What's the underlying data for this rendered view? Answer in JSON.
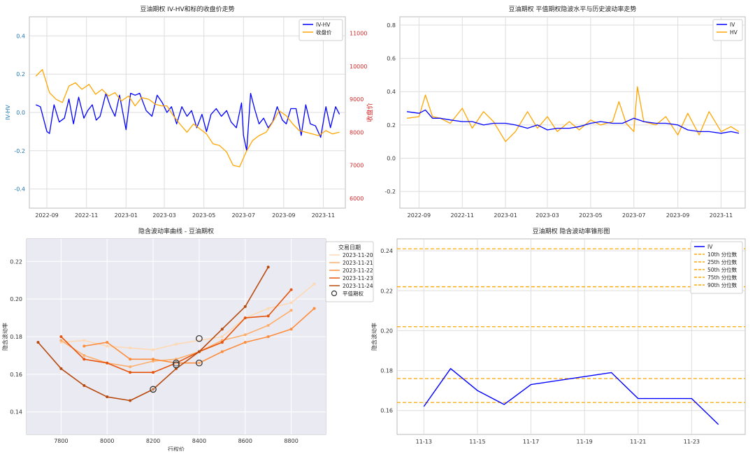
{
  "chart_data": [
    {
      "type": "line",
      "title": "豆油期权 IV-HV和标的收盘价走势",
      "xlabel": "",
      "ylabel": "IV-HV",
      "ylabel_right": "收盘价",
      "x_ticks": [
        "2022-09",
        "2022-11",
        "2023-01",
        "2023-03",
        "2023-05",
        "2023-07",
        "2023-09",
        "2023-11"
      ],
      "x_range": [
        "2022-08-05",
        "2023-12-05"
      ],
      "ylim": [
        -0.5,
        0.5
      ],
      "y_ticks": [
        -0.4,
        -0.2,
        0.0,
        0.2,
        0.4
      ],
      "ylim_right": [
        5700,
        11500
      ],
      "y_ticks_right": [
        6000,
        7000,
        8000,
        9000,
        10000,
        11000
      ],
      "grid": true,
      "legend_position": "top-right",
      "series": [
        {
          "name": "IV-HV",
          "axis": "left",
          "color": "#0000ff",
          "x": [
            "2022-08-15",
            "2022-08-22",
            "2022-09-01",
            "2022-09-05",
            "2022-09-12",
            "2022-09-20",
            "2022-09-28",
            "2022-10-05",
            "2022-10-12",
            "2022-10-20",
            "2022-10-28",
            "2022-11-03",
            "2022-11-10",
            "2022-11-16",
            "2022-11-22",
            "2022-12-01",
            "2022-12-08",
            "2022-12-15",
            "2022-12-22",
            "2023-01-01",
            "2023-01-08",
            "2023-01-15",
            "2023-01-22",
            "2023-02-01",
            "2023-02-10",
            "2023-02-18",
            "2023-02-26",
            "2023-03-05",
            "2023-03-12",
            "2023-03-20",
            "2023-03-28",
            "2023-04-05",
            "2023-04-12",
            "2023-04-20",
            "2023-04-28",
            "2023-05-05",
            "2023-05-12",
            "2023-05-20",
            "2023-05-28",
            "2023-06-05",
            "2023-06-12",
            "2023-06-20",
            "2023-06-28",
            "2023-07-01",
            "2023-07-06",
            "2023-07-12",
            "2023-07-18",
            "2023-07-25",
            "2023-08-01",
            "2023-08-08",
            "2023-08-15",
            "2023-08-22",
            "2023-08-30",
            "2023-09-05",
            "2023-09-12",
            "2023-09-20",
            "2023-09-28",
            "2023-10-05",
            "2023-10-12",
            "2023-10-20",
            "2023-10-28",
            "2023-11-05",
            "2023-11-12",
            "2023-11-20",
            "2023-11-26"
          ],
          "y": [
            0.04,
            0.03,
            -0.1,
            -0.11,
            0.04,
            -0.05,
            -0.03,
            0.07,
            -0.06,
            0.08,
            -0.03,
            0.01,
            0.04,
            -0.04,
            -0.02,
            0.1,
            0.03,
            -0.02,
            0.09,
            -0.09,
            0.1,
            0.09,
            0.1,
            0.01,
            -0.02,
            0.09,
            0.05,
            0.0,
            0.03,
            -0.06,
            0.03,
            -0.02,
            0.01,
            -0.08,
            -0.01,
            -0.1,
            -0.01,
            0.02,
            -0.02,
            0.01,
            -0.05,
            -0.08,
            0.05,
            -0.12,
            -0.2,
            0.1,
            0.02,
            -0.06,
            -0.03,
            -0.08,
            -0.05,
            0.03,
            -0.04,
            -0.06,
            0.02,
            0.02,
            -0.12,
            0.04,
            -0.06,
            -0.07,
            -0.13,
            0.03,
            -0.08,
            0.03,
            -0.01
          ]
        },
        {
          "name": "收盘价",
          "axis": "right",
          "color": "#ffa500",
          "x": [
            "2022-08-15",
            "2022-08-25",
            "2022-09-05",
            "2022-09-15",
            "2022-09-25",
            "2022-10-05",
            "2022-10-15",
            "2022-10-25",
            "2022-11-05",
            "2022-11-15",
            "2022-11-25",
            "2022-12-05",
            "2022-12-15",
            "2022-12-25",
            "2023-01-05",
            "2023-01-15",
            "2023-01-25",
            "2023-02-05",
            "2023-02-15",
            "2023-02-25",
            "2023-03-05",
            "2023-03-15",
            "2023-03-25",
            "2023-04-05",
            "2023-04-15",
            "2023-04-25",
            "2023-05-05",
            "2023-05-15",
            "2023-05-25",
            "2023-06-05",
            "2023-06-15",
            "2023-06-25",
            "2023-07-05",
            "2023-07-15",
            "2023-07-25",
            "2023-08-05",
            "2023-08-15",
            "2023-08-25",
            "2023-09-05",
            "2023-09-15",
            "2023-09-25",
            "2023-10-05",
            "2023-10-15",
            "2023-10-25",
            "2023-11-05",
            "2023-11-15",
            "2023-11-26"
          ],
          "y": [
            9700,
            9900,
            9200,
            9000,
            8900,
            9400,
            9500,
            9300,
            9450,
            9150,
            9300,
            9100,
            9200,
            8950,
            9100,
            8800,
            9050,
            9000,
            8850,
            8800,
            8800,
            8500,
            8250,
            8000,
            8250,
            8100,
            7950,
            7650,
            7600,
            7400,
            7000,
            6950,
            7400,
            7750,
            7900,
            8000,
            8300,
            8650,
            8500,
            8250,
            8050,
            8000,
            7950,
            7900,
            8050,
            7950,
            8000
          ]
        }
      ]
    },
    {
      "type": "line",
      "title": "豆油期权 平值期权隐波水平与历史波动率走势",
      "xlabel": "",
      "ylabel": "",
      "x_ticks": [
        "2022-09",
        "2022-11",
        "2023-01",
        "2023-03",
        "2023-05",
        "2023-07",
        "2023-09",
        "2023-11"
      ],
      "x_range": [
        "2022-08-05",
        "2023-12-05"
      ],
      "ylim": [
        -0.3,
        0.85
      ],
      "y_ticks": [
        -0.2,
        0.0,
        0.2,
        0.4,
        0.6,
        0.8
      ],
      "grid": true,
      "legend_position": "top-right",
      "series": [
        {
          "name": "IV",
          "color": "#0000ff",
          "x": [
            "2022-08-15",
            "2022-09-01",
            "2022-09-10",
            "2022-09-20",
            "2022-10-01",
            "2022-10-15",
            "2022-11-01",
            "2022-11-15",
            "2022-12-01",
            "2022-12-15",
            "2023-01-01",
            "2023-01-15",
            "2023-02-01",
            "2023-02-15",
            "2023-03-01",
            "2023-03-15",
            "2023-04-01",
            "2023-04-15",
            "2023-05-01",
            "2023-05-15",
            "2023-06-01",
            "2023-06-15",
            "2023-07-01",
            "2023-07-15",
            "2023-08-01",
            "2023-08-15",
            "2023-09-01",
            "2023-09-15",
            "2023-10-01",
            "2023-10-15",
            "2023-11-01",
            "2023-11-15",
            "2023-11-26"
          ],
          "y": [
            0.28,
            0.27,
            0.29,
            0.24,
            0.24,
            0.23,
            0.22,
            0.22,
            0.2,
            0.21,
            0.21,
            0.2,
            0.18,
            0.2,
            0.17,
            0.18,
            0.18,
            0.19,
            0.21,
            0.22,
            0.21,
            0.21,
            0.24,
            0.22,
            0.21,
            0.21,
            0.2,
            0.17,
            0.16,
            0.16,
            0.15,
            0.16,
            0.15
          ]
        },
        {
          "name": "HV",
          "color": "#ffa500",
          "x": [
            "2022-08-15",
            "2022-09-01",
            "2022-09-10",
            "2022-09-20",
            "2022-10-01",
            "2022-10-15",
            "2022-11-01",
            "2022-11-15",
            "2022-12-01",
            "2022-12-15",
            "2023-01-01",
            "2023-01-15",
            "2023-02-01",
            "2023-02-15",
            "2023-03-01",
            "2023-03-15",
            "2023-04-01",
            "2023-04-15",
            "2023-05-01",
            "2023-05-15",
            "2023-06-01",
            "2023-06-10",
            "2023-06-20",
            "2023-07-01",
            "2023-07-06",
            "2023-07-15",
            "2023-08-01",
            "2023-08-15",
            "2023-09-01",
            "2023-09-15",
            "2023-10-01",
            "2023-10-15",
            "2023-11-01",
            "2023-11-15",
            "2023-11-26"
          ],
          "y": [
            0.24,
            0.25,
            0.38,
            0.25,
            0.24,
            0.21,
            0.3,
            0.18,
            0.28,
            0.22,
            0.1,
            0.16,
            0.28,
            0.18,
            0.25,
            0.16,
            0.22,
            0.17,
            0.23,
            0.2,
            0.22,
            0.34,
            0.21,
            0.16,
            0.43,
            0.22,
            0.2,
            0.25,
            0.14,
            0.27,
            0.14,
            0.28,
            0.16,
            0.19,
            0.16
          ]
        }
      ]
    },
    {
      "type": "line",
      "title": "隐含波动率曲线 - 豆油期权",
      "xlabel": "行权价",
      "ylabel": "隐含波动率",
      "xlim": [
        7650,
        8950
      ],
      "x_ticks": [
        7800,
        8000,
        8200,
        8400,
        8600,
        8800
      ],
      "ylim": [
        0.128,
        0.232
      ],
      "y_ticks": [
        0.14,
        0.16,
        0.18,
        0.2,
        0.22
      ],
      "grid": true,
      "legend_title": "交易日期",
      "legend_position": "top-right",
      "series": [
        {
          "name": "2023-11-20",
          "color": "#fdd9b4",
          "x": [
            7800,
            7900,
            8000,
            8100,
            8200,
            8300,
            8400,
            8500,
            8600,
            8700,
            8800,
            8900
          ],
          "y": [
            0.177,
            0.178,
            0.175,
            0.174,
            0.173,
            0.176,
            0.178,
            0.18,
            0.19,
            0.195,
            0.198,
            0.208
          ]
        },
        {
          "name": "2023-11-21",
          "color": "#fdae6b",
          "x": [
            7800,
            7900,
            8000,
            8100,
            8200,
            8300,
            8400,
            8500,
            8600,
            8700,
            8800
          ],
          "y": [
            0.178,
            0.17,
            0.166,
            0.164,
            0.167,
            0.168,
            0.172,
            0.178,
            0.181,
            0.186,
            0.194
          ]
        },
        {
          "name": "2023-11-22",
          "color": "#fd8d3c",
          "x": [
            7900,
            8000,
            8100,
            8200,
            8300,
            8400,
            8500,
            8600,
            8700,
            8800,
            8900
          ],
          "y": [
            0.175,
            0.177,
            0.168,
            0.168,
            0.166,
            0.166,
            0.172,
            0.177,
            0.18,
            0.184,
            0.195
          ]
        },
        {
          "name": "2023-11-23",
          "color": "#e6550d",
          "x": [
            7800,
            7900,
            8000,
            8100,
            8200,
            8300,
            8400,
            8500,
            8600,
            8700,
            8800
          ],
          "y": [
            0.18,
            0.168,
            0.166,
            0.161,
            0.161,
            0.166,
            0.172,
            0.177,
            0.19,
            0.191,
            0.205
          ]
        },
        {
          "name": "2023-11-24",
          "color": "#b84a0e",
          "x": [
            7700,
            7800,
            7900,
            8000,
            8100,
            8200,
            8300,
            8400,
            8500,
            8600,
            8700
          ],
          "y": [
            0.177,
            0.163,
            0.154,
            0.148,
            0.146,
            0.152,
            0.163,
            0.172,
            0.184,
            0.196,
            0.217
          ]
        }
      ],
      "atm_label": "平值期权",
      "atm_points": [
        {
          "x": 8300,
          "y": 0.166
        },
        {
          "x": 8300,
          "y": 0.165
        },
        {
          "x": 8400,
          "y": 0.179
        },
        {
          "x": 8400,
          "y": 0.166
        },
        {
          "x": 8200,
          "y": 0.152
        }
      ]
    },
    {
      "type": "line",
      "title": "豆油期权 隐含波动率锥形图",
      "xlabel": "",
      "ylabel": "隐含波动率",
      "x_ticks": [
        "11-13",
        "11-15",
        "11-17",
        "11-19",
        "11-21",
        "11-23"
      ],
      "x_range": [
        "2023-11-12",
        "2023-11-25"
      ],
      "ylim": [
        0.148,
        0.246
      ],
      "y_ticks": [
        0.16,
        0.18,
        0.2,
        0.22,
        0.24
      ],
      "grid": true,
      "legend_position": "top-right",
      "series": [
        {
          "name": "IV",
          "color": "#0000ff",
          "x": [
            "2023-11-13",
            "2023-11-14",
            "2023-11-15",
            "2023-11-16",
            "2023-11-17",
            "2023-11-20",
            "2023-11-21",
            "2023-11-22",
            "2023-11-23",
            "2023-11-24"
          ],
          "y": [
            0.162,
            0.181,
            0.17,
            0.163,
            0.173,
            0.179,
            0.166,
            0.166,
            0.166,
            0.153
          ]
        }
      ],
      "percentiles": [
        {
          "name": "10th 分位数",
          "value": 0.164,
          "color": "#ffa500"
        },
        {
          "name": "25th 分位数",
          "value": 0.176,
          "color": "#ffa500"
        },
        {
          "name": "50th 分位数",
          "value": 0.202,
          "color": "#ffa500"
        },
        {
          "name": "75th 分位数",
          "value": 0.222,
          "color": "#ffa500"
        },
        {
          "name": "90th 分位数",
          "value": 0.241,
          "color": "#ffa500"
        }
      ]
    }
  ]
}
